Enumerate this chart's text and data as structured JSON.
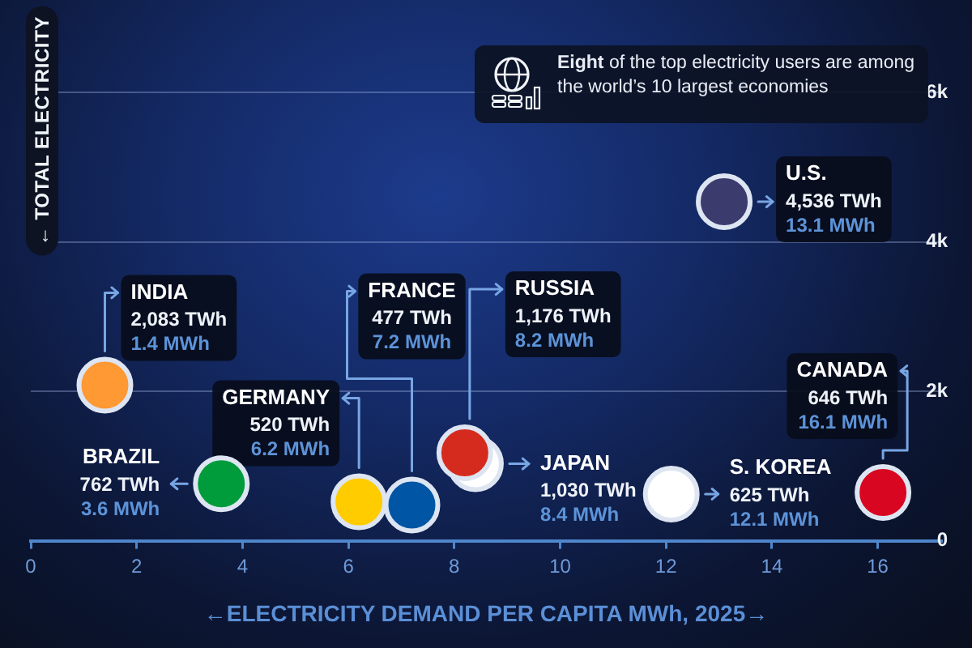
{
  "chart_data": {
    "type": "scatter",
    "xlabel": "←ELECTRICITY DEMAND PER CAPITA MWh, 2025→",
    "ylabel": "← TOTAL ELECTRICITY",
    "xlim": [
      0,
      17.2
    ],
    "xticks": [
      0,
      2,
      4,
      6,
      8,
      10,
      12,
      14,
      16
    ],
    "ylim": [
      0,
      6000
    ],
    "yticks": [
      0,
      {
        "value": 2000,
        "label": "2k"
      },
      {
        "value": 4000,
        "label": "4k"
      },
      {
        "value": 6000,
        "label": "6k"
      }
    ],
    "grid": "y",
    "legend": false,
    "marker": "circle",
    "series": [
      {
        "name": "INDIA",
        "color": "#ff9933",
        "x": [
          1.4
        ],
        "values": [
          2083
        ],
        "value_labels": [
          "2,083 TWh"
        ]
      },
      {
        "name": "BRAZIL",
        "color": "#009c3b",
        "x": [
          3.6
        ],
        "values": [
          762
        ],
        "value_labels": [
          "762 TWh"
        ]
      },
      {
        "name": "GERMANY",
        "color": "#ffcc00",
        "x": [
          6.2
        ],
        "values": [
          520
        ],
        "value_labels": [
          "520 TWh"
        ]
      },
      {
        "name": "FRANCE",
        "color": "#0055a4",
        "x": [
          7.2
        ],
        "values": [
          477
        ],
        "value_labels": [
          "477 TWh"
        ]
      },
      {
        "name": "RUSSIA",
        "color": "#d52b1e",
        "x": [
          8.2
        ],
        "values": [
          1176
        ],
        "value_labels": [
          "1,176 TWh"
        ]
      },
      {
        "name": "JAPAN",
        "color": "#ffffff",
        "x": [
          8.4
        ],
        "values": [
          1030
        ],
        "value_labels": [
          "1,030 TWh"
        ]
      },
      {
        "name": "S. KOREA",
        "color": "#ffffff",
        "x": [
          12.1
        ],
        "values": [
          625
        ],
        "value_labels": [
          "625 TWh"
        ]
      },
      {
        "name": "U.S.",
        "color": "#3c3b6e",
        "x": [
          13.1
        ],
        "values": [
          4536
        ],
        "value_labels": [
          "4,536 TWh"
        ]
      },
      {
        "name": "CANADA",
        "color": "#d80621",
        "x": [
          16.1
        ],
        "values": [
          646
        ],
        "value_labels": [
          "646 TWh"
        ]
      }
    ],
    "annotations": [
      "Eight of the top electricity users are among the world’s 10 largest economies",
      "1.4 MWh",
      "3.6 MWh",
      "6.2 MWh",
      "7.2 MWh",
      "8.2 MWh",
      "8.4 MWh",
      "12.1 MWh",
      "13.1 MWh",
      "16.1 MWh"
    ]
  }
}
